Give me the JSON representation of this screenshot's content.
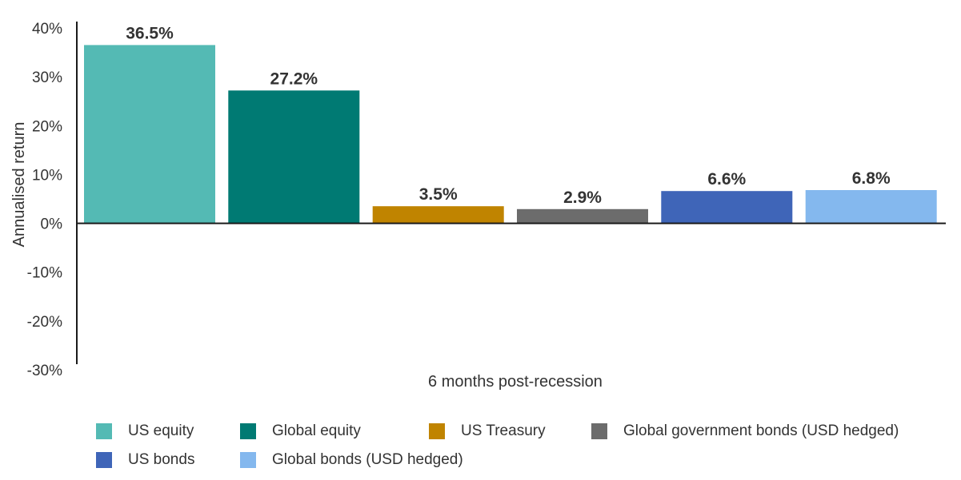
{
  "chart_data": {
    "type": "bar",
    "xlabel": "6 months post-recession",
    "ylabel": "Annualised return",
    "ylim": [
      -30,
      40
    ],
    "yticks": [
      40,
      30,
      20,
      10,
      0,
      -10,
      -20,
      -30
    ],
    "ytick_labels": [
      "40%",
      "30%",
      "20%",
      "10%",
      "0%",
      "-10%",
      "-20%",
      "-30%"
    ],
    "category": "6 months post-recession",
    "legend_position": "bottom",
    "grid": false,
    "series": [
      {
        "name": "US equity",
        "value": 36.5,
        "label": "36.5%",
        "color": "#54bab4"
      },
      {
        "name": "Global equity",
        "value": 27.2,
        "label": "27.2%",
        "color": "#007a73"
      },
      {
        "name": "US Treasury",
        "value": 3.5,
        "label": "3.5%",
        "color": "#c08400"
      },
      {
        "name": "Global government bonds (USD hedged)",
        "value": 2.9,
        "label": "2.9%",
        "color": "#6c6c6c"
      },
      {
        "name": "US bonds",
        "value": 6.6,
        "label": "6.6%",
        "color": "#3f65b8"
      },
      {
        "name": "Global bonds (USD hedged)",
        "value": 6.8,
        "label": "6.8%",
        "color": "#84b8ee"
      }
    ]
  }
}
